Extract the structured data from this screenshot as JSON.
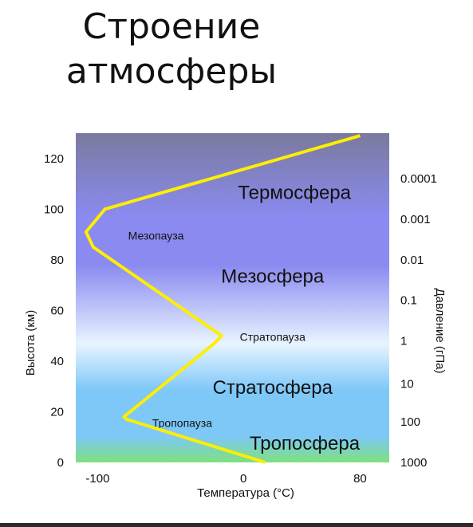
{
  "slide": {
    "title_line1": "Строение",
    "title_line2": "атмосферы"
  },
  "chart_data": {
    "type": "line",
    "xlabel": "Температура (°С)",
    "ylabel": "Высота (км)",
    "y2label": "Давление (гПа)",
    "xlim": [
      -115,
      100
    ],
    "ylim": [
      0,
      130
    ],
    "xticks": [
      "-100",
      "0",
      "80"
    ],
    "xtick_values": [
      -100,
      0,
      80
    ],
    "yticks": [
      "0",
      "20",
      "40",
      "60",
      "80",
      "100",
      "120"
    ],
    "ytick_values": [
      0,
      20,
      40,
      60,
      80,
      100,
      120
    ],
    "pressure_ticks": [
      {
        "label": "1000",
        "altitude": 0
      },
      {
        "label": "100",
        "altitude": 16
      },
      {
        "label": "10",
        "altitude": 31
      },
      {
        "label": "1",
        "altitude": 48
      },
      {
        "label": "0.1",
        "altitude": 64
      },
      {
        "label": "0.01",
        "altitude": 80
      },
      {
        "label": "0.001",
        "altitude": 96
      },
      {
        "label": "0.0001",
        "altitude": 112
      }
    ],
    "series": [
      {
        "color": "#ffee00",
        "x": [
          15,
          -80,
          -82,
          -20,
          -15,
          -103,
          -108,
          -95,
          80
        ],
        "y": [
          0,
          17,
          18,
          47,
          50,
          85,
          91,
          100,
          129
        ]
      }
    ],
    "layers": [
      {
        "label": "Термосфера",
        "x": 35,
        "y": 104,
        "size": "large"
      },
      {
        "label": "Мезосфера",
        "x": 20,
        "y": 71,
        "size": "large"
      },
      {
        "label": "Стратосфера",
        "x": 20,
        "y": 27,
        "size": "large"
      },
      {
        "label": "Тропосфера",
        "x": 42,
        "y": 5,
        "size": "large"
      },
      {
        "label": "Мезопауза",
        "x": -60,
        "y": 88,
        "size": "small"
      },
      {
        "label": "Стратопауза",
        "x": 20,
        "y": 48,
        "size": "small"
      },
      {
        "label": "Тропопауза",
        "x": -42,
        "y": 14,
        "size": "small"
      }
    ],
    "colors": {
      "top": "#7a7a9e",
      "upper": "#8a8af0",
      "middle": "#e8f4ff",
      "lower": "#7ec8f8",
      "bottom": "#7ee07e"
    }
  }
}
